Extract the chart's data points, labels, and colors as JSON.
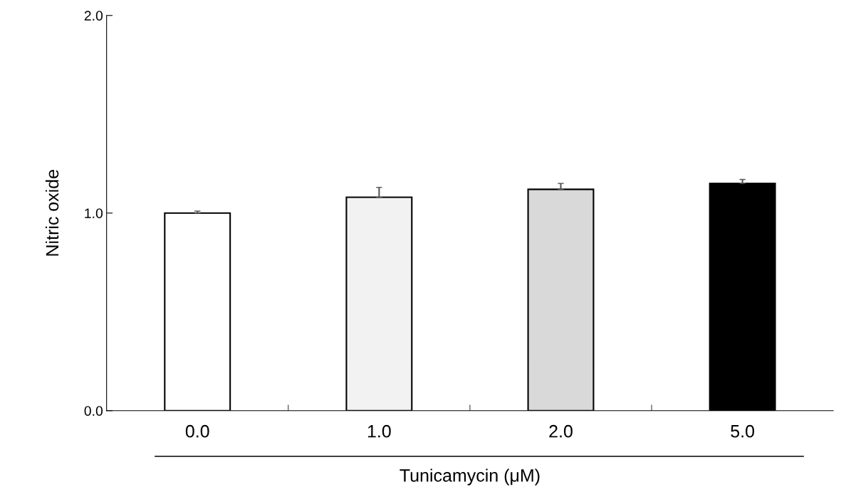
{
  "chart_data": {
    "type": "bar",
    "xlabel": "Tunicamycin (μM)",
    "ylabel": "Nitric oxide",
    "categories": [
      "0.0",
      "1.0",
      "2.0",
      "5.0"
    ],
    "values": [
      1.0,
      1.08,
      1.12,
      1.15
    ],
    "errors": [
      0.01,
      0.05,
      0.03,
      0.02
    ],
    "colors": [
      "#ffffff",
      "#f2f2f2",
      "#d9d9d9",
      "#000000"
    ],
    "ylim": [
      0,
      2
    ],
    "yticks": [
      {
        "value": 0,
        "label": "0.0"
      },
      {
        "value": 1,
        "label": "1.0"
      },
      {
        "value": 2,
        "label": "2.0"
      }
    ],
    "grid": false,
    "legend": false
  }
}
